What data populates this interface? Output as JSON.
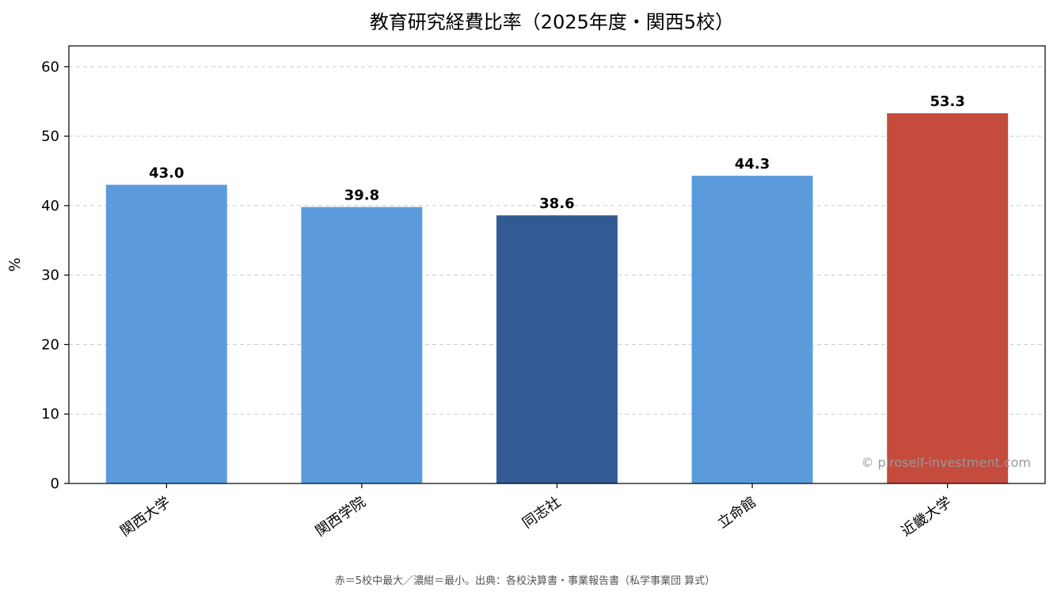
{
  "chart_data": {
    "type": "bar",
    "title": "教育研究経費比率（2025年度・関西5校）",
    "xlabel": "",
    "ylabel": "%",
    "ylim": [
      0,
      63
    ],
    "yticks": [
      0,
      10,
      20,
      30,
      40,
      50,
      60
    ],
    "grid": "y-dashed",
    "categories": [
      "関西大学",
      "関西学院",
      "同志社",
      "立命館",
      "近畿大学"
    ],
    "values": [
      43.0,
      39.8,
      38.6,
      44.3,
      53.3
    ],
    "value_labels": [
      "43.0",
      "39.8",
      "38.6",
      "44.3",
      "53.3"
    ],
    "colors": [
      "#5b9bdb",
      "#5b9bdb",
      "#325a93",
      "#5b9bdb",
      "#c54b3d"
    ],
    "watermark": "© piroself-investment.com",
    "footnote": "赤＝5校中最大／濃紺＝最小。出典：各校決算書・事業報告書（私学事業団 算式）"
  }
}
